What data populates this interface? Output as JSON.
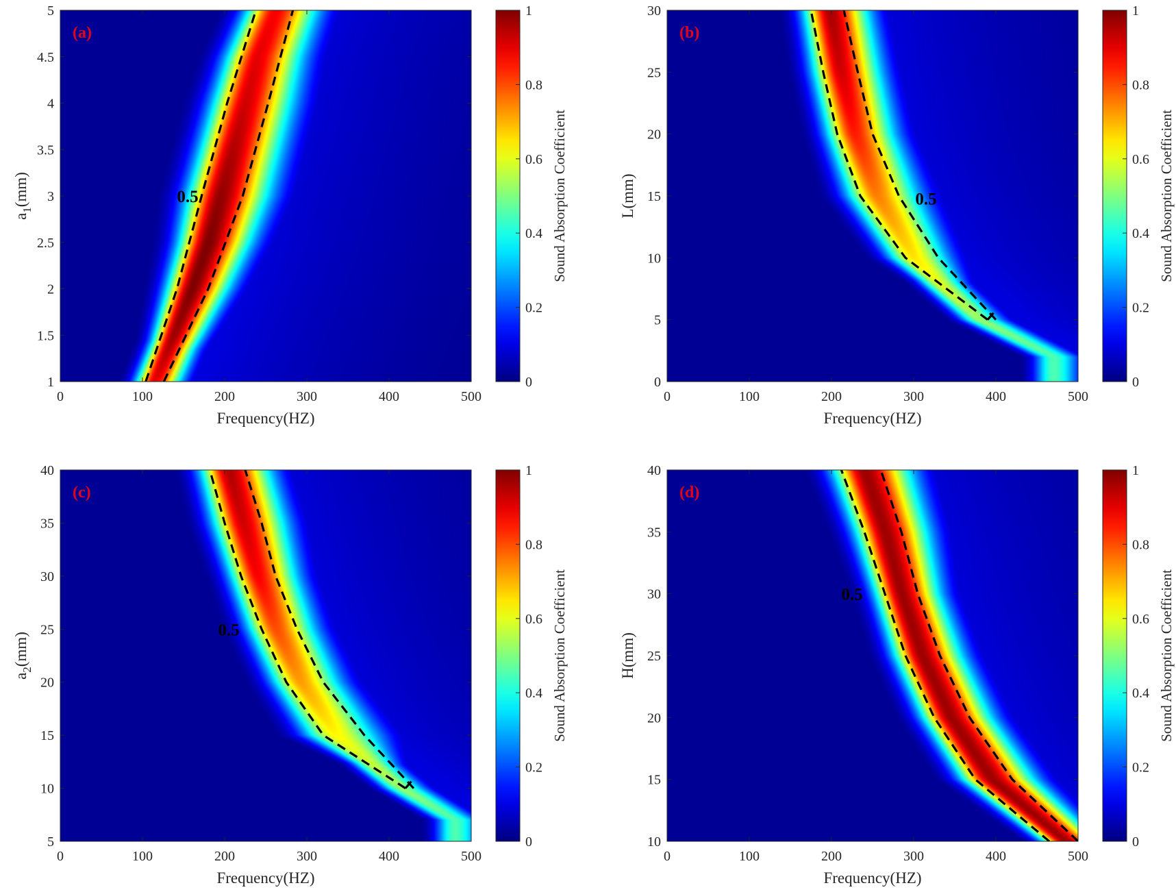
{
  "figure": {
    "colorbar_label": "Sound Absorption Coefficient",
    "colormap": "jet",
    "colorbar_ticks": [
      "0",
      "0.2",
      "0.4",
      "0.6",
      "0.8",
      "1"
    ],
    "contour_color": "#000000"
  },
  "chart_data": [
    {
      "type": "heatmap",
      "panel_label": "(a)",
      "xlabel": "Frequency(HZ)",
      "ylabel": "a1(mm)",
      "ylabel_main": "a",
      "ylabel_sub": "1",
      "ylabel_unit": "(mm)",
      "xlim": [
        0,
        500
      ],
      "ylim": [
        1,
        5
      ],
      "x_ticks": [
        "0",
        "100",
        "200",
        "300",
        "400",
        "500"
      ],
      "y_ticks": [
        "1",
        "1.5",
        "2",
        "2.5",
        "3",
        "3.5",
        "4",
        "4.5",
        "5"
      ],
      "contour_level": "0.5",
      "clim": [
        0,
        1
      ],
      "ridge": [
        {
          "y": 1.0,
          "f": 115,
          "peak": 0.9
        },
        {
          "y": 1.5,
          "f": 138,
          "peak": 0.97
        },
        {
          "y": 2.0,
          "f": 160,
          "peak": 1.0
        },
        {
          "y": 2.5,
          "f": 180,
          "peak": 1.0
        },
        {
          "y": 3.0,
          "f": 195,
          "peak": 0.98
        },
        {
          "y": 3.5,
          "f": 210,
          "peak": 0.95
        },
        {
          "y": 4.0,
          "f": 225,
          "peak": 0.92
        },
        {
          "y": 4.5,
          "f": 240,
          "peak": 0.9
        },
        {
          "y": 5.0,
          "f": 262,
          "peak": 0.88
        }
      ],
      "contour_band": [
        {
          "y": 1.0,
          "f_low": 104,
          "f_high": 126
        },
        {
          "y": 2.0,
          "f_low": 142,
          "f_high": 180
        },
        {
          "y": 3.0,
          "f_low": 172,
          "f_high": 222
        },
        {
          "y": 4.0,
          "f_low": 203,
          "f_high": 253
        },
        {
          "y": 5.0,
          "f_low": 238,
          "f_high": 283
        }
      ]
    },
    {
      "type": "heatmap",
      "panel_label": "(b)",
      "xlabel": "Frequency(HZ)",
      "ylabel": "L(mm)",
      "ylabel_main": "L",
      "ylabel_sub": "",
      "ylabel_unit": "(mm)",
      "xlim": [
        0,
        500
      ],
      "ylim": [
        0,
        30
      ],
      "x_ticks": [
        "0",
        "100",
        "200",
        "300",
        "400",
        "500"
      ],
      "y_ticks": [
        "0",
        "5",
        "10",
        "15",
        "20",
        "25",
        "30"
      ],
      "contour_level": "0.5",
      "clim": [
        0,
        1
      ],
      "ridge": [
        {
          "y": 2,
          "f": 470,
          "peak": 0.45
        },
        {
          "y": 5,
          "f": 380,
          "peak": 0.52
        },
        {
          "y": 8,
          "f": 330,
          "peak": 0.6
        },
        {
          "y": 10,
          "f": 300,
          "peak": 0.65
        },
        {
          "y": 15,
          "f": 255,
          "peak": 0.75
        },
        {
          "y": 20,
          "f": 228,
          "peak": 0.85
        },
        {
          "y": 25,
          "f": 211,
          "peak": 0.92
        },
        {
          "y": 30,
          "f": 198,
          "peak": 0.96
        }
      ],
      "contour_band": [
        {
          "y": 5,
          "f_low": 390,
          "f_high": 400
        },
        {
          "y": 10,
          "f_low": 290,
          "f_high": 330
        },
        {
          "y": 15,
          "f_low": 235,
          "f_high": 282
        },
        {
          "y": 20,
          "f_low": 207,
          "f_high": 250
        },
        {
          "y": 25,
          "f_low": 190,
          "f_high": 232
        },
        {
          "y": 30,
          "f_low": 175,
          "f_high": 215
        }
      ]
    },
    {
      "type": "heatmap",
      "panel_label": "(c)",
      "xlabel": "Frequency(HZ)",
      "ylabel": "a2(mm)",
      "ylabel_main": "a",
      "ylabel_sub": "2",
      "ylabel_unit": "(mm)",
      "xlim": [
        0,
        500
      ],
      "ylim": [
        5,
        40
      ],
      "x_ticks": [
        "0",
        "100",
        "200",
        "300",
        "400",
        "500"
      ],
      "y_ticks": [
        "5",
        "10",
        "15",
        "20",
        "25",
        "30",
        "35",
        "40"
      ],
      "contour_level": "0.5",
      "clim": [
        0,
        1
      ],
      "ridge": [
        {
          "y": 7,
          "f": 480,
          "peak": 0.45
        },
        {
          "y": 10,
          "f": 415,
          "peak": 0.52
        },
        {
          "y": 15,
          "f": 335,
          "peak": 0.63
        },
        {
          "y": 20,
          "f": 292,
          "peak": 0.72
        },
        {
          "y": 25,
          "f": 262,
          "peak": 0.8
        },
        {
          "y": 30,
          "f": 240,
          "peak": 0.88
        },
        {
          "y": 35,
          "f": 222,
          "peak": 0.92
        },
        {
          "y": 40,
          "f": 205,
          "peak": 0.95
        }
      ],
      "contour_band": [
        {
          "y": 10,
          "f_low": 420,
          "f_high": 430
        },
        {
          "y": 15,
          "f_low": 320,
          "f_high": 370
        },
        {
          "y": 20,
          "f_low": 275,
          "f_high": 320
        },
        {
          "y": 25,
          "f_low": 245,
          "f_high": 288
        },
        {
          "y": 30,
          "f_low": 220,
          "f_high": 262
        },
        {
          "y": 35,
          "f_low": 200,
          "f_high": 245
        },
        {
          "y": 40,
          "f_low": 182,
          "f_high": 225
        }
      ]
    },
    {
      "type": "heatmap",
      "panel_label": "(d)",
      "xlabel": "Frequency(HZ)",
      "ylabel": "H(mm)",
      "ylabel_main": "H",
      "ylabel_sub": "",
      "ylabel_unit": "(mm)",
      "xlim": [
        0,
        500
      ],
      "ylim": [
        10,
        40
      ],
      "x_ticks": [
        "0",
        "100",
        "200",
        "300",
        "400",
        "500"
      ],
      "y_ticks": [
        "10",
        "15",
        "20",
        "25",
        "30",
        "35",
        "40"
      ],
      "contour_level": "0.5",
      "clim": [
        0,
        1
      ],
      "ridge": [
        {
          "y": 10,
          "f": 485,
          "peak": 0.97
        },
        {
          "y": 15,
          "f": 395,
          "peak": 0.97
        },
        {
          "y": 20,
          "f": 345,
          "peak": 0.97
        },
        {
          "y": 25,
          "f": 310,
          "peak": 0.97
        },
        {
          "y": 30,
          "f": 285,
          "peak": 0.97
        },
        {
          "y": 35,
          "f": 265,
          "peak": 0.97
        },
        {
          "y": 40,
          "f": 240,
          "peak": 0.97
        }
      ],
      "contour_band": [
        {
          "y": 10,
          "f_low": 465,
          "f_high": 500
        },
        {
          "y": 15,
          "f_low": 375,
          "f_high": 420
        },
        {
          "y": 20,
          "f_low": 325,
          "f_high": 368
        },
        {
          "y": 25,
          "f_low": 290,
          "f_high": 332
        },
        {
          "y": 30,
          "f_low": 265,
          "f_high": 305
        },
        {
          "y": 35,
          "f_low": 240,
          "f_high": 285
        },
        {
          "y": 40,
          "f_low": 212,
          "f_high": 260
        }
      ]
    }
  ]
}
